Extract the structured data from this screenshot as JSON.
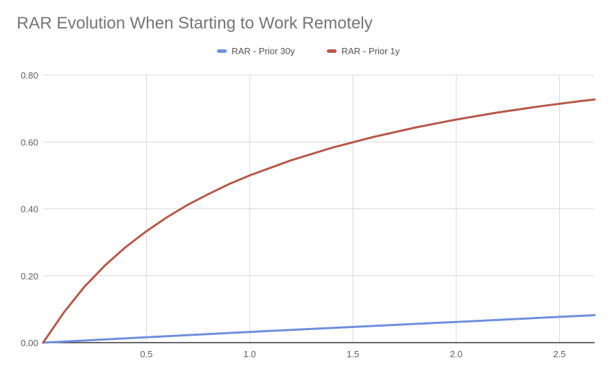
{
  "chart_data": {
    "type": "line",
    "title": "RAR Evolution When Starting to Work Remotely",
    "xlabel": "",
    "ylabel": "",
    "xlim": [
      0,
      2.67
    ],
    "ylim": [
      0,
      0.8
    ],
    "x_ticks": [
      "0.5",
      "1.0",
      "1.5",
      "2.0",
      "2.5"
    ],
    "y_ticks": [
      "0.00",
      "0.20",
      "0.40",
      "0.60",
      "0.80"
    ],
    "grid": true,
    "legend_position": "top",
    "series": [
      {
        "name": "RAR - Prior 30y",
        "color": "#6d8fdc",
        "x": [
          0,
          0.5,
          1.0,
          1.5,
          2.0,
          2.5,
          2.67
        ],
        "y": [
          0,
          0.016,
          0.032,
          0.047,
          0.062,
          0.077,
          0.082
        ]
      },
      {
        "name": "RAR - Prior 1y",
        "color": "#b5584a",
        "x": [
          0,
          0.1,
          0.2,
          0.3,
          0.4,
          0.5,
          0.6,
          0.7,
          0.8,
          0.9,
          1.0,
          1.2,
          1.4,
          1.6,
          1.8,
          2.0,
          2.2,
          2.4,
          2.6,
          2.67
        ],
        "y": [
          0,
          0.09,
          0.167,
          0.231,
          0.286,
          0.333,
          0.375,
          0.412,
          0.444,
          0.474,
          0.5,
          0.545,
          0.583,
          0.615,
          0.643,
          0.667,
          0.688,
          0.706,
          0.722,
          0.727
        ]
      }
    ]
  }
}
